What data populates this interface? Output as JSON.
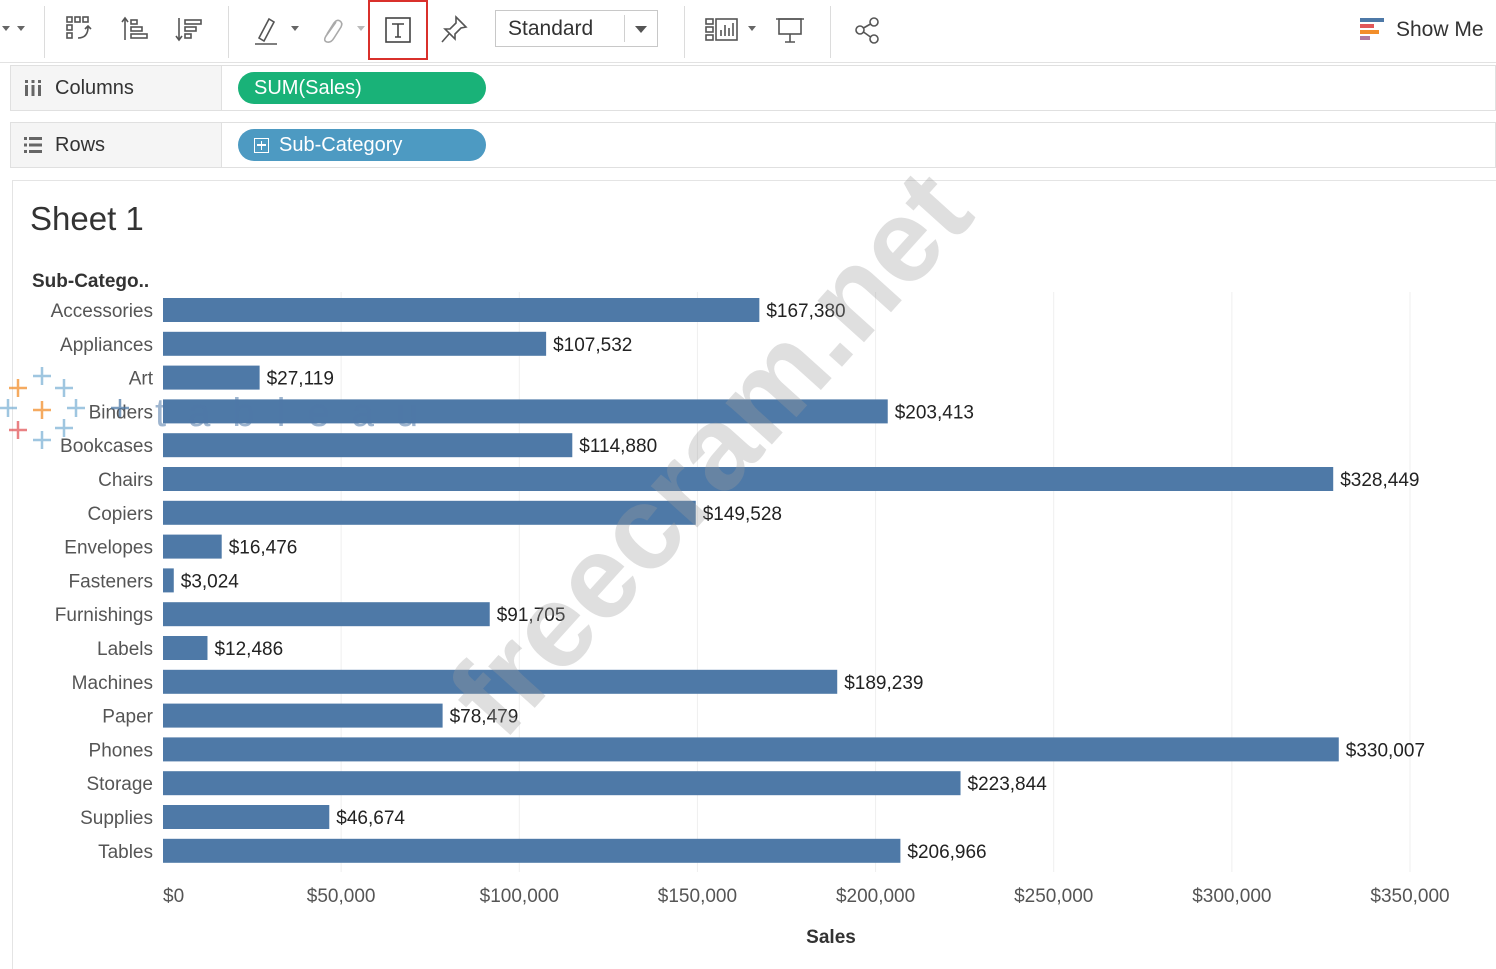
{
  "toolbar": {
    "fit_value": "Standard",
    "show_me_label": "Show Me",
    "icons": [
      "dropdown-arrow-icon",
      "swap-rows-columns-icon",
      "sort-ascending-icon",
      "sort-descending-icon",
      "highlight-icon",
      "group-members-icon",
      "show-mark-labels-icon",
      "fix-axes-icon",
      "cards-icon",
      "presentation-mode-icon",
      "share-icon",
      "show-me-icon"
    ],
    "accent_color": "#d9302b"
  },
  "shelves": {
    "columns": {
      "label": "Columns",
      "pill": "SUM(Sales)",
      "pill_color": "#19b278"
    },
    "rows": {
      "label": "Rows",
      "pill": "Sub-Category",
      "pill_color": "#4d9ac2"
    }
  },
  "sheet": {
    "title": "Sheet 1"
  },
  "chart_data": {
    "type": "bar",
    "orientation": "horizontal",
    "row_header": "Sub-Catego..",
    "xlabel": "Sales",
    "xlim": [
      0,
      350000
    ],
    "x_ticks": [
      0,
      50000,
      100000,
      150000,
      200000,
      250000,
      300000,
      350000
    ],
    "x_tick_labels": [
      "$0",
      "$50,000",
      "$100,000",
      "$150,000",
      "$200,000",
      "$250,000",
      "$300,000",
      "$350,000"
    ],
    "bar_color": "#4e79a7",
    "grid": "vertical",
    "categories": [
      "Accessories",
      "Appliances",
      "Art",
      "Binders",
      "Bookcases",
      "Chairs",
      "Copiers",
      "Envelopes",
      "Fasteners",
      "Furnishings",
      "Labels",
      "Machines",
      "Paper",
      "Phones",
      "Storage",
      "Supplies",
      "Tables"
    ],
    "values": [
      167380,
      107532,
      27119,
      203413,
      114880,
      328449,
      149528,
      16476,
      3024,
      91705,
      12486,
      189239,
      78479,
      330007,
      223844,
      46674,
      206966
    ],
    "data_labels": [
      "$167,380",
      "$107,532",
      "$27,119",
      "$203,413",
      "$114,880",
      "$328,449",
      "$149,528",
      "$16,476",
      "$3,024",
      "$91,705",
      "$12,486",
      "$189,239",
      "$78,479",
      "$330,007",
      "$223,844",
      "$46,674",
      "$206,966"
    ]
  },
  "watermarks": [
    "freecram.net",
    "tableau"
  ]
}
